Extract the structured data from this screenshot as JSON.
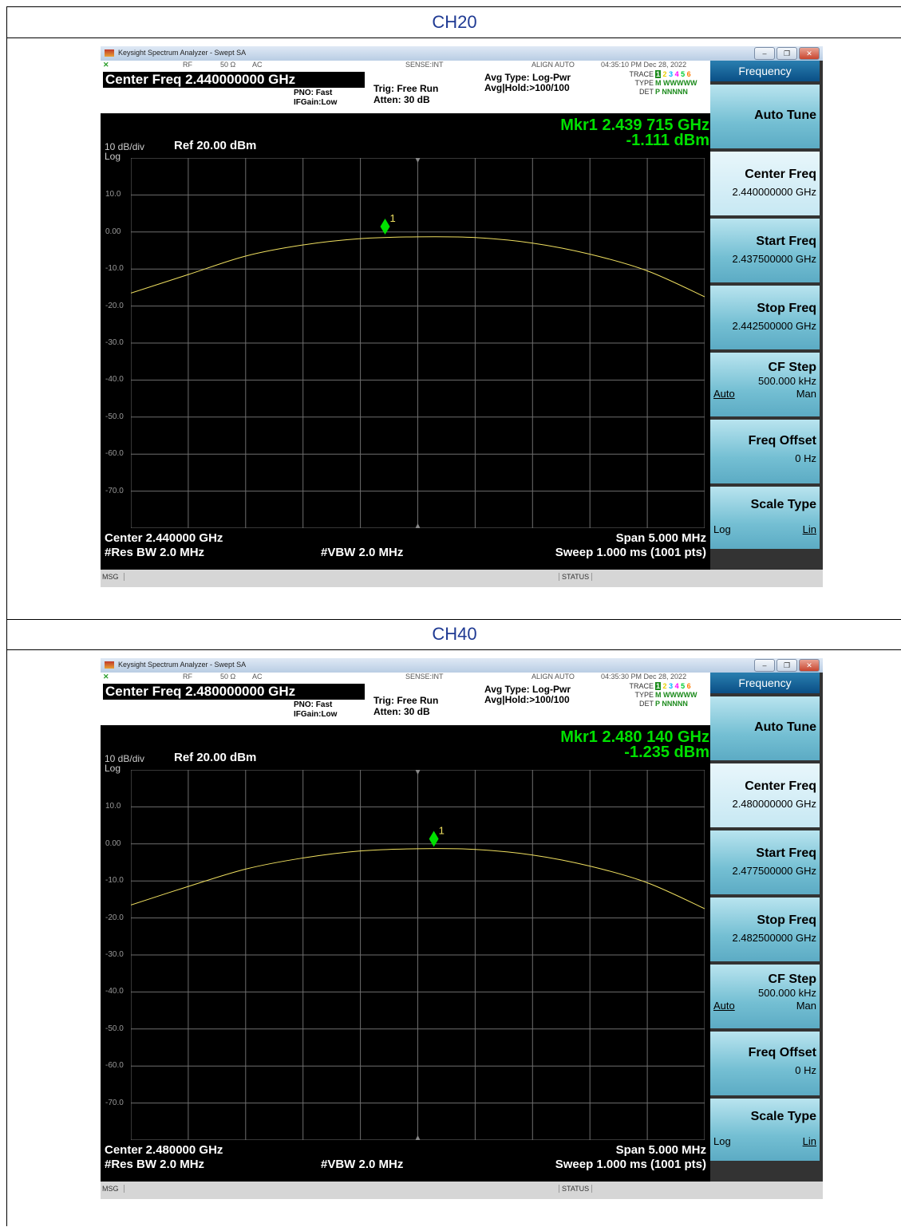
{
  "sections": [
    {
      "title": "CH20",
      "window_title": "Keysight Spectrum Analyzer - Swept SA",
      "status_row": {
        "rf": "RF",
        "impedance": "50 Ω",
        "coupling": "AC",
        "sense": "SENSE:INT",
        "align": "ALIGN AUTO",
        "datetime": "04:35:10 PM Dec 28, 2022"
      },
      "center_freq_title": "Center Freq 2.440000000 GHz",
      "pno": "PNO: Fast",
      "ifgain": "IFGain:Low",
      "trig": "Trig: Free Run",
      "atten": "Atten: 30 dB",
      "avg_type": "Avg Type: Log-Pwr",
      "avg_hold": "Avg|Hold:>100/100",
      "trace_labels": [
        "TRACE",
        "TYPE",
        "DET"
      ],
      "trace_type": "M WWWWW",
      "trace_det": "P NNNNN",
      "marker_freq": "Mkr1 2.439 715 GHz",
      "marker_amp": "-1.111 dBm",
      "scale": "10 dB/div",
      "scale_type": "Log",
      "ref_level": "Ref 20.00 dBm",
      "y_labels": [
        "10.0",
        "0.00",
        "-10.0",
        "-20.0",
        "-30.0",
        "-40.0",
        "-50.0",
        "-60.0",
        "-70.0"
      ],
      "marker_label": "1",
      "footer": {
        "center": "Center 2.440000 GHz",
        "res_bw": "#Res BW 2.0 MHz",
        "vbw": "#VBW 2.0 MHz",
        "span": "Span 5.000 MHz",
        "sweep": "Sweep  1.000 ms (1001 pts)"
      },
      "msg": "MSG",
      "status": "STATUS",
      "softkeys": {
        "header": "Frequency",
        "auto_tune": "Auto Tune",
        "center_freq": "Center Freq",
        "center_freq_val": "2.440000000 GHz",
        "start_freq": "Start Freq",
        "start_freq_val": "2.437500000 GHz",
        "stop_freq": "Stop Freq",
        "stop_freq_val": "2.442500000 GHz",
        "cf_step": "CF Step",
        "cf_step_val": "500.000 kHz",
        "cf_auto": "Auto",
        "cf_man": "Man",
        "freq_offset": "Freq Offset",
        "freq_offset_val": "0 Hz",
        "scale_type": "Scale Type",
        "log": "Log",
        "lin": "Lin"
      }
    },
    {
      "title": "CH40",
      "window_title": "Keysight Spectrum Analyzer - Swept SA",
      "status_row": {
        "rf": "RF",
        "impedance": "50 Ω",
        "coupling": "AC",
        "sense": "SENSE:INT",
        "align": "ALIGN AUTO",
        "datetime": "04:35:30 PM Dec 28, 2022"
      },
      "center_freq_title": "Center Freq 2.480000000 GHz",
      "pno": "PNO: Fast",
      "ifgain": "IFGain:Low",
      "trig": "Trig: Free Run",
      "atten": "Atten: 30 dB",
      "avg_type": "Avg Type: Log-Pwr",
      "avg_hold": "Avg|Hold:>100/100",
      "trace_labels": [
        "TRACE",
        "TYPE",
        "DET"
      ],
      "trace_type": "M WWWWW",
      "trace_det": "P NNNNN",
      "marker_freq": "Mkr1 2.480 140 GHz",
      "marker_amp": "-1.235 dBm",
      "scale": "10 dB/div",
      "scale_type": "Log",
      "ref_level": "Ref 20.00 dBm",
      "y_labels": [
        "10.0",
        "0.00",
        "-10.0",
        "-20.0",
        "-30.0",
        "-40.0",
        "-50.0",
        "-60.0",
        "-70.0"
      ],
      "marker_label": "1",
      "footer": {
        "center": "Center 2.480000 GHz",
        "res_bw": "#Res BW 2.0 MHz",
        "vbw": "#VBW 2.0 MHz",
        "span": "Span 5.000 MHz",
        "sweep": "Sweep  1.000 ms (1001 pts)"
      },
      "msg": "MSG",
      "status": "STATUS",
      "softkeys": {
        "header": "Frequency",
        "auto_tune": "Auto Tune",
        "center_freq": "Center Freq",
        "center_freq_val": "2.480000000 GHz",
        "start_freq": "Start Freq",
        "start_freq_val": "2.477500000 GHz",
        "stop_freq": "Stop Freq",
        "stop_freq_val": "2.482500000 GHz",
        "cf_step": "CF Step",
        "cf_step_val": "500.000 kHz",
        "cf_auto": "Auto",
        "cf_man": "Man",
        "freq_offset": "Freq Offset",
        "freq_offset_val": "0 Hz",
        "scale_type": "Scale Type",
        "log": "Log",
        "lin": "Lin"
      }
    }
  ],
  "chart_data": [
    {
      "type": "line",
      "x_unit": "GHz",
      "y_unit": "dBm",
      "x_range": [
        2.4375,
        2.4425
      ],
      "y_range": [
        -80,
        20
      ],
      "series": [
        {
          "x": [
            2.4375,
            2.438,
            2.4385,
            2.439,
            2.4395,
            2.44,
            2.4405,
            2.441,
            2.4415,
            2.442,
            2.4425
          ],
          "y": [
            -16.5,
            -11.5,
            -6.5,
            -3.5,
            -1.8,
            -1.3,
            -1.5,
            -3.0,
            -6.0,
            -10.5,
            -17.5
          ]
        }
      ],
      "marker": {
        "x": 2.439715,
        "y": -1.111
      },
      "colors": {
        "trace": "#f0e060",
        "marker": "#00e000",
        "grid": "#6e6e6e"
      }
    },
    {
      "type": "line",
      "x_unit": "GHz",
      "y_unit": "dBm",
      "x_range": [
        2.4775,
        2.4825
      ],
      "y_range": [
        -80,
        20
      ],
      "series": [
        {
          "x": [
            2.4775,
            2.478,
            2.4785,
            2.479,
            2.4795,
            2.48,
            2.4805,
            2.481,
            2.4815,
            2.482,
            2.4825
          ],
          "y": [
            -16.5,
            -11.5,
            -6.8,
            -3.8,
            -1.9,
            -1.3,
            -1.5,
            -3.0,
            -6.0,
            -10.5,
            -17.5
          ]
        }
      ],
      "marker": {
        "x": 2.48014,
        "y": -1.235
      },
      "colors": {
        "trace": "#f0e060",
        "marker": "#00e000",
        "grid": "#6e6e6e"
      }
    }
  ]
}
